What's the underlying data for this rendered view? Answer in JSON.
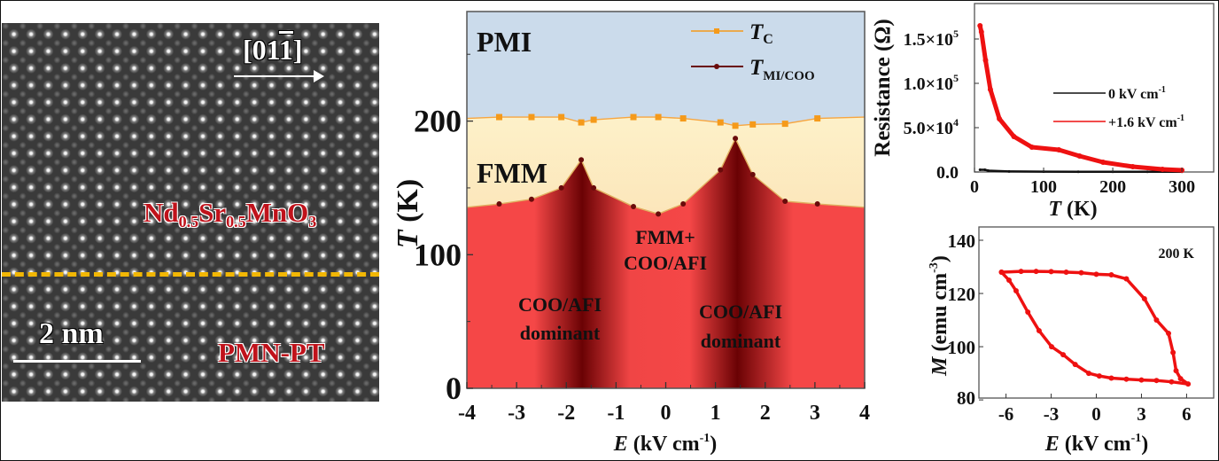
{
  "image_panel": {
    "direction_label": "[01",
    "direction_bar_digit": "1",
    "direction_close": "]",
    "film_label": {
      "a": "Nd",
      "a_sub": "0.5",
      "b": "Sr",
      "b_sub": "0.5",
      "c": "MnO",
      "c_sub": "3"
    },
    "substrate_label": "PMN-PT",
    "scale_bar_label": "2 nm",
    "interface_line_color": "#f2b705",
    "label_color": "#c0121b"
  },
  "chart_data": [
    {
      "type": "area",
      "xlabel": "E (kV cm-1)",
      "xlabel_italic": "E",
      "xlabel_unit": " (kV cm",
      "xlabel_exp": "-1",
      "xlabel_close": ")",
      "ylabel_italic": "T",
      "ylabel_unit": " (K)",
      "xlim": [
        -4,
        4
      ],
      "ylim": [
        0,
        282
      ],
      "x_ticks": [
        "-4",
        "-3",
        "-2",
        "-1",
        "0",
        "1",
        "2",
        "3",
        "4"
      ],
      "y_ticks": [
        "0",
        "100",
        "200"
      ],
      "grid": false,
      "legend_position": "top-right",
      "region_labels": {
        "pmi": "PMI",
        "fmm": "FMM",
        "mixed_1": "FMM+",
        "mixed_2": "COO/AFI",
        "left_1": "COO/AFI",
        "left_2": "dominant",
        "right_1": "COO/AFI",
        "right_2": "dominant"
      },
      "region_colors": {
        "pmi": "#cbdbeb",
        "fmm_top": "#fdf1c9",
        "fmm_bottom": "#fbd6a6",
        "coo": "#f54747",
        "coo_dark": "#6a0204"
      },
      "series": [
        {
          "name": "T",
          "name_sub": "C",
          "color": "#f59a1a",
          "marker": "square",
          "x": [
            -4,
            -3.35,
            -2.7,
            -2.1,
            -1.7,
            -1.45,
            -0.65,
            -0.15,
            0.35,
            1.1,
            1.4,
            1.75,
            2.4,
            3.05,
            4
          ],
          "y": [
            202,
            203,
            203,
            203,
            199,
            201,
            203,
            203,
            202,
            199,
            196.5,
            197.5,
            198,
            202,
            203
          ]
        },
        {
          "name": "T",
          "name_sub": "MI/COO",
          "color": "#6a0b0b",
          "marker": "circle",
          "x": [
            -4,
            -3.35,
            -2.7,
            -2.1,
            -1.7,
            -1.45,
            -0.65,
            -0.15,
            0.35,
            1.1,
            1.4,
            1.75,
            2.4,
            3.05,
            4
          ],
          "y": [
            135.5,
            138,
            141.5,
            150,
            171,
            150,
            136,
            130.5,
            138,
            163.5,
            187,
            160,
            140,
            138,
            135.5
          ]
        }
      ]
    },
    {
      "type": "line",
      "ylabel": "Resistance (Ω)",
      "xlabel_italic": "T",
      "xlabel_unit": " (K)",
      "xlim": [
        0,
        346
      ],
      "ylim": [
        0,
        190000
      ],
      "x_ticks": [
        "0",
        "100",
        "200",
        "300"
      ],
      "y_ticks": [
        {
          "mant": "0.0",
          "exp": ""
        },
        {
          "mant": "5.0×10",
          "exp": "4"
        },
        {
          "mant": "1.0×10",
          "exp": "5"
        },
        {
          "mant": "1.5×10",
          "exp": "5"
        }
      ],
      "legend_position": "center-right",
      "series": [
        {
          "name": "0 kV cm",
          "name_exp": "-1",
          "color": "#111111",
          "x": [
            8,
            15,
            20,
            50,
            100,
            150,
            200,
            250,
            300
          ],
          "y": [
            2500,
            2500,
            1500,
            600,
            400,
            300,
            300,
            200,
            200
          ]
        },
        {
          "name": "+1.6 kV cm",
          "name_exp": "-1",
          "color": "#ee1111",
          "x": [
            8,
            10,
            16,
            23,
            36,
            57,
            83,
            122,
            152,
            186,
            229,
            272,
            300
          ],
          "y": [
            165000,
            158000,
            126000,
            93000,
            60000,
            40000,
            28000,
            25000,
            18000,
            11000,
            6000,
            3000,
            2000
          ]
        }
      ]
    },
    {
      "type": "scatter",
      "annotation": "200 K",
      "ylabel_italic": "M",
      "ylabel_unit": " (emu cm",
      "ylabel_exp": "-3",
      "ylabel_close": ")",
      "xlabel_italic": "E",
      "xlabel_unit": " (kV cm",
      "xlabel_exp": "-1",
      "xlabel_close": ")",
      "xlim": [
        -7.8,
        7.8
      ],
      "ylim": [
        80.7,
        145
      ],
      "x_ticks": [
        "-6",
        "-3",
        "0",
        "3",
        "6"
      ],
      "y_ticks": [
        "80",
        "100",
        "120",
        "140"
      ],
      "series": [
        {
          "color": "#ee1111",
          "x": [
            -6.3,
            -5,
            -4,
            -3,
            -2,
            -1,
            0,
            1,
            2,
            3.2,
            4.0,
            4.8,
            5.1,
            5.3,
            5.6,
            6.1,
            5,
            4,
            3,
            2,
            1,
            0.2,
            -0.5,
            -1.4,
            -2.2,
            -2.97,
            -3.8,
            -4.55,
            -5.33,
            -5.8,
            -6.3
          ],
          "y": [
            128,
            128.3,
            128.3,
            128.2,
            128,
            127.8,
            127.2,
            127,
            125.5,
            118,
            110,
            105,
            97.8,
            91,
            88,
            86,
            86.8,
            87.3,
            87.5,
            87.8,
            88.2,
            89,
            90,
            93.3,
            97,
            100,
            106,
            113,
            121,
            125,
            128
          ]
        }
      ]
    }
  ]
}
